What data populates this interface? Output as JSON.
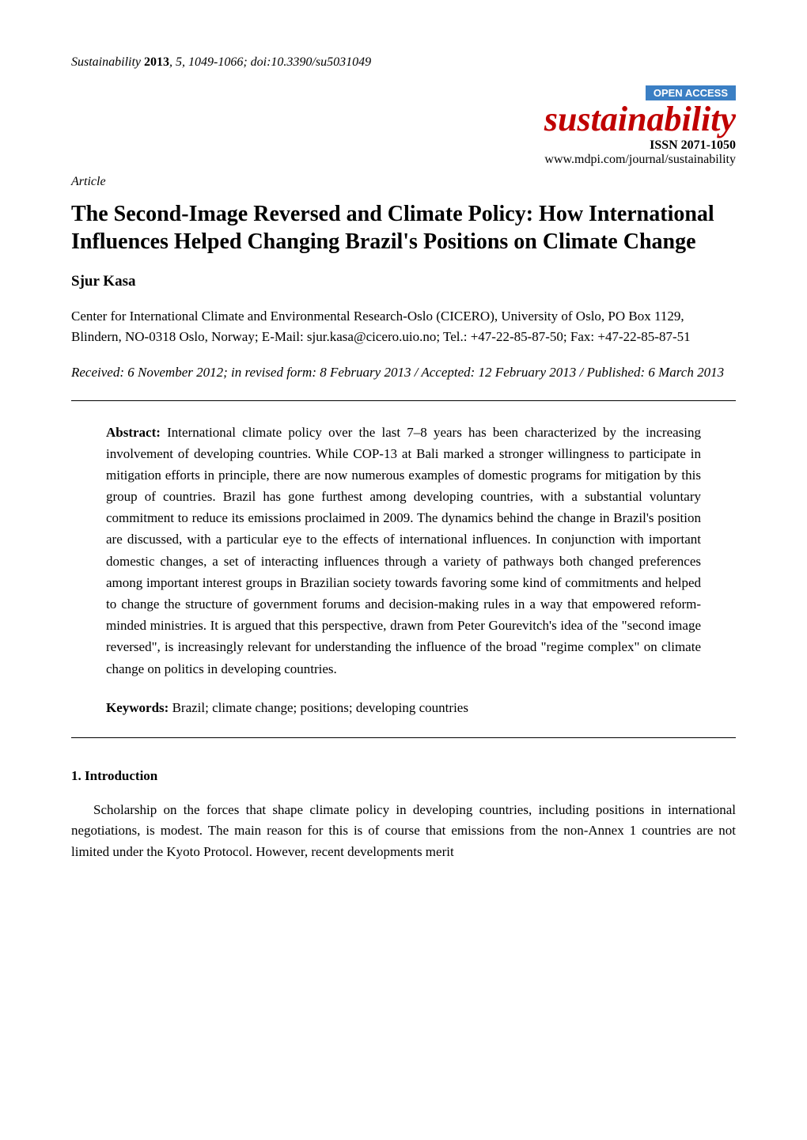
{
  "header": {
    "journal_italic": "Sustainability ",
    "year_bold": "2013",
    "vol_issue": ", ",
    "vol_italic": "5",
    "pages_doi": ", 1049-1066; doi:10.3390/su5031049"
  },
  "badges": {
    "open_access": "OPEN ACCESS",
    "journal_logo": "sustainability",
    "issn": "ISSN 2071-1050",
    "url": "www.mdpi.com/journal/sustainability"
  },
  "article_label": "Article",
  "title": "The Second-Image Reversed and Climate Policy: How International Influences Helped Changing Brazil's Positions on Climate Change",
  "author": "Sjur Kasa",
  "affiliation": "Center for International Climate and Environmental Research-Oslo (CICERO), University of Oslo, PO Box 1129, Blindern, NO-0318 Oslo, Norway; E-Mail: sjur.kasa@cicero.uio.no; Tel.: +47-22-85-87-50; Fax: +47-22-85-87-51",
  "dates": "Received: 6 November 2012; in revised form: 8 February 2013 / Accepted: 12 February 2013 / Published: 6 March 2013",
  "abstract_label": "Abstract: ",
  "abstract_text": "International climate policy over the last 7–8 years has been characterized by the increasing involvement of developing countries. While COP-13 at Bali marked a stronger willingness to participate in mitigation efforts in principle, there are now numerous examples of domestic programs for mitigation by this group of countries. Brazil has gone furthest among developing countries, with a substantial voluntary commitment to reduce its emissions proclaimed in 2009. The dynamics behind the change in Brazil's position are discussed, with a particular eye to the effects of international influences. In conjunction with important domestic changes, a set of interacting influences through a variety of pathways both changed preferences among important interest groups in Brazilian society towards favoring some kind of commitments and helped to change the structure of government forums and decision-making rules in a way that empowered reform-minded ministries. It is argued that this perspective, drawn from Peter Gourevitch's idea of the \"second image reversed\", is increasingly relevant for understanding the influence of the broad \"regime complex\" on climate change on politics in developing countries.",
  "keywords_label": "Keywords: ",
  "keywords_text": "Brazil; climate change; positions; developing countries",
  "section_heading": "1. Introduction",
  "intro_para": "Scholarship on the forces that shape climate policy in developing countries, including positions in international negotiations, is modest. The main reason for this is of course that emissions from the non-Annex 1 countries are not limited under the Kyoto Protocol. However, recent developments merit",
  "colors": {
    "badge_bg": "#3b7fc4",
    "badge_text": "#ffffff",
    "logo_color": "#c00000",
    "text_color": "#000000",
    "background": "#ffffff"
  },
  "typography": {
    "body_font": "Times New Roman",
    "title_fontsize": 28,
    "author_fontsize": 19,
    "body_fontsize": 17,
    "header_fontsize": 16,
    "logo_fontsize": 44
  }
}
